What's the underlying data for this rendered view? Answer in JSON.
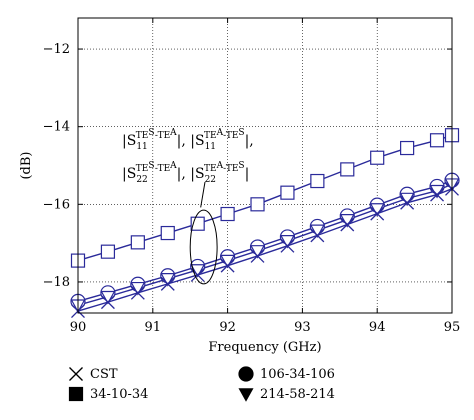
{
  "chart_data": {
    "type": "line",
    "xlabel": "Frequency (GHz)",
    "ylabel": "(dB)",
    "xlim": [
      90,
      95
    ],
    "ylim": [
      -18.8,
      -11.2
    ],
    "xticks": [
      90,
      91,
      92,
      93,
      94,
      95
    ],
    "yticks": [
      -18,
      -16,
      -14,
      -12
    ],
    "xtick_labels": [
      "90",
      "91",
      "92",
      "93",
      "94",
      "95"
    ],
    "ytick_labels": [
      "−18",
      "−16",
      "−14",
      "−12"
    ],
    "grid": true,
    "marker_x": [
      90,
      90.4,
      90.8,
      91.2,
      91.6,
      92,
      92.4,
      92.8,
      93.2,
      93.6,
      94,
      94.4,
      94.8,
      95
    ],
    "series": [
      {
        "name": "34-10-34",
        "marker": "square",
        "color": "#2a2a9a",
        "values": [
          -17.45,
          -17.22,
          -16.98,
          -16.74,
          -16.5,
          -16.25,
          -16.0,
          -15.7,
          -15.4,
          -15.1,
          -14.8,
          -14.55,
          -14.35,
          -14.22
        ]
      },
      {
        "name": "106-34-106",
        "marker": "circle",
        "color": "#2a2a9a",
        "values": [
          -18.5,
          -18.28,
          -18.06,
          -17.84,
          -17.6,
          -17.35,
          -17.1,
          -16.84,
          -16.57,
          -16.3,
          -16.02,
          -15.74,
          -15.54,
          -15.38
        ]
      },
      {
        "name": "214-58-214",
        "marker": "triangle-down",
        "color": "#2a2a9a",
        "values": [
          -18.6,
          -18.38,
          -18.15,
          -17.92,
          -17.69,
          -17.45,
          -17.2,
          -16.94,
          -16.67,
          -16.4,
          -16.12,
          -15.85,
          -15.65,
          -15.48
        ]
      },
      {
        "name": "CST",
        "marker": "x",
        "color": "#2a2a9a",
        "values": [
          -18.75,
          -18.52,
          -18.28,
          -18.05,
          -17.82,
          -17.58,
          -17.33,
          -17.07,
          -16.8,
          -16.52,
          -16.24,
          -15.96,
          -15.75,
          -15.6
        ]
      }
    ],
    "annotation": {
      "line1": {
        "a_pre": "|S",
        "a_sub": "11",
        "a_sup": "TE",
        "a_sup2": "S",
        "a_sup3": "-TE",
        "a_sup4": "A",
        "a_post": "|, ",
        "b_pre": "|S",
        "b_sub": "11",
        "b_sup": "TE",
        "b_sup2": "A",
        "b_sup3": "-TE",
        "b_sup4": "S",
        "b_post": "|,"
      },
      "line2": {
        "a_pre": "|S",
        "a_sub": "22",
        "a_sup": "TE",
        "a_sup2": "S",
        "a_sup3": "-TE",
        "a_sup4": "A",
        "a_post": "|, ",
        "b_pre": "|S",
        "b_sub": "22",
        "b_sup": "TE",
        "b_sup2": "A",
        "b_sup3": "-TE",
        "b_sup4": "S",
        "b_post": "|"
      },
      "ellipse_center": [
        91.68,
        -17.1
      ],
      "ellipse_radius": [
        0.18,
        0.95
      ],
      "pointer_to": [
        91.64,
        -16.08
      ]
    },
    "legend": {
      "placement": "bottom",
      "entries": [
        {
          "label": "CST",
          "marker": "x"
        },
        {
          "label": "106-34-106",
          "marker": "circle"
        },
        {
          "label": "34-10-34",
          "marker": "square"
        },
        {
          "label": "214-58-214",
          "marker": "triangle-down"
        }
      ]
    }
  }
}
